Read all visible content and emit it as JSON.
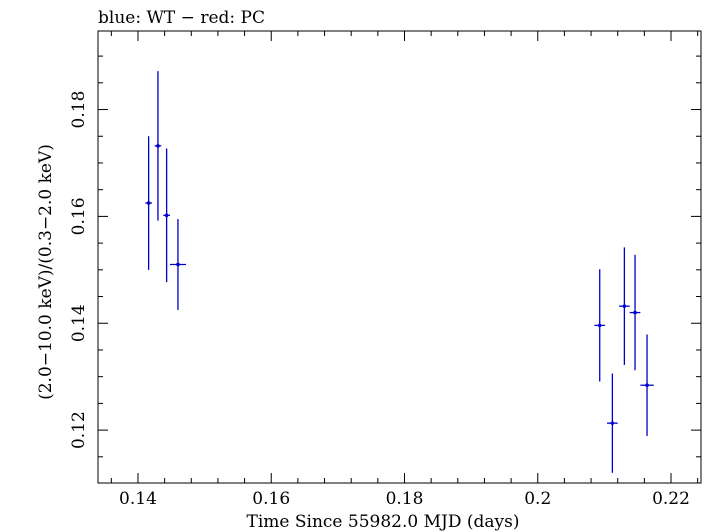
{
  "chart_data": {
    "type": "scatter",
    "title": "blue: WT − red: PC",
    "xlabel": "Time Since 55982.0 MJD (days)",
    "ylabel": "(2.0−10.0 keV)/(0.3−2.0 keV)",
    "xlim": [
      0.134,
      0.2245
    ],
    "ylim": [
      0.1101,
      0.1947
    ],
    "x_ticks": [
      {
        "value": 0.14,
        "label": "0.14"
      },
      {
        "value": 0.16,
        "label": "0.16"
      },
      {
        "value": 0.18,
        "label": "0.18"
      },
      {
        "value": 0.2,
        "label": "0.2"
      },
      {
        "value": 0.22,
        "label": "0.22"
      }
    ],
    "y_ticks": [
      {
        "value": 0.12,
        "label": "0.12"
      },
      {
        "value": 0.14,
        "label": "0.14"
      },
      {
        "value": 0.16,
        "label": "0.16"
      },
      {
        "value": 0.18,
        "label": "0.18"
      }
    ],
    "grid": false,
    "series": [
      {
        "color": "#0000cc",
        "points": [
          {
            "x": 0.1416,
            "xerr": 0.0005,
            "y": 0.1625,
            "yerr": 0.0125
          },
          {
            "x": 0.143,
            "xerr": 0.0005,
            "y": 0.1732,
            "yerr": 0.014
          },
          {
            "x": 0.1443,
            "xerr": 0.0005,
            "y": 0.1602,
            "yerr": 0.0125
          },
          {
            "x": 0.146,
            "xerr": 0.0012,
            "y": 0.151,
            "yerr": 0.0085
          },
          {
            "x": 0.2093,
            "xerr": 0.0008,
            "y": 0.1396,
            "yerr": 0.0105
          },
          {
            "x": 0.2112,
            "xerr": 0.0008,
            "y": 0.1213,
            "yerr": 0.0093
          },
          {
            "x": 0.213,
            "xerr": 0.0008,
            "y": 0.1432,
            "yerr": 0.011
          },
          {
            "x": 0.2146,
            "xerr": 0.0008,
            "y": 0.142,
            "yerr": 0.0108
          },
          {
            "x": 0.2164,
            "xerr": 0.001,
            "y": 0.1284,
            "yerr": 0.0095
          }
        ]
      }
    ]
  }
}
